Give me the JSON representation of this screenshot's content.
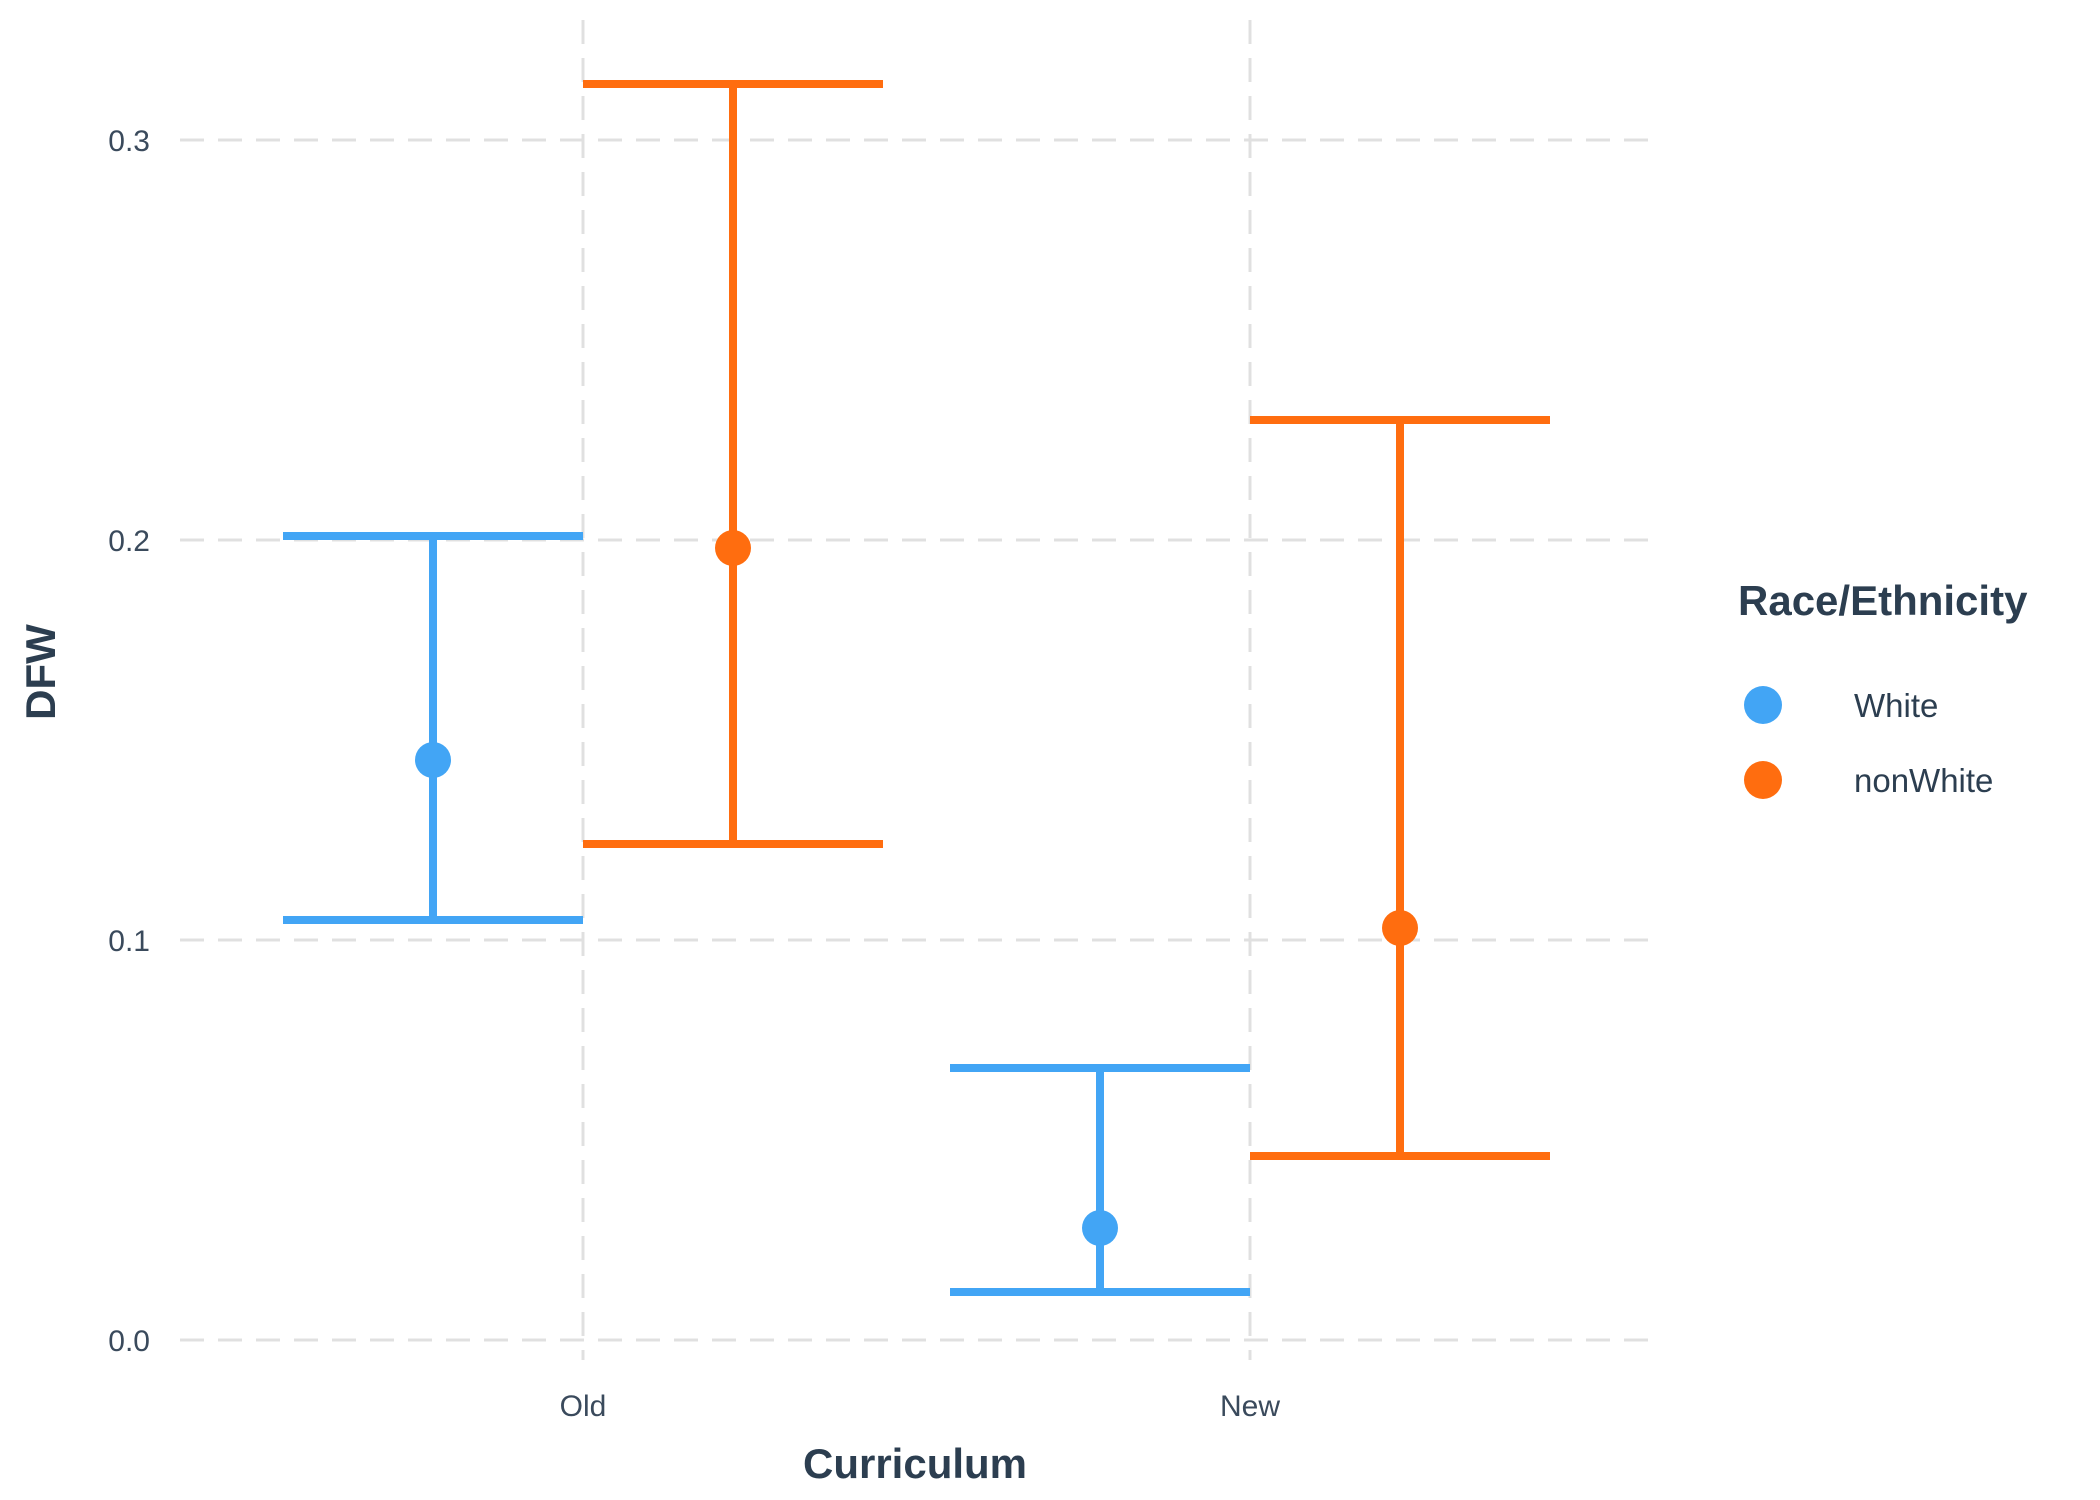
{
  "chart_data": {
    "type": "errorbar",
    "title": "",
    "xlabel": "Curriculum",
    "ylabel": "DFW",
    "categories": [
      "Old",
      "New"
    ],
    "ylim": [
      0,
      0.32
    ],
    "yticks": [
      0.0,
      0.1,
      0.2,
      0.3
    ],
    "ytick_labels": [
      "0.0",
      "0.1",
      "0.2",
      "0.3"
    ],
    "grid": true,
    "legend": {
      "title": "Race/Ethnicity",
      "position": "right"
    },
    "series": [
      {
        "name": "White",
        "color": "#42a5f5",
        "points": [
          {
            "category": "Old",
            "estimate": 0.145,
            "lower": 0.105,
            "upper": 0.201
          },
          {
            "category": "New",
            "estimate": 0.028,
            "lower": 0.012,
            "upper": 0.068
          }
        ]
      },
      {
        "name": "nonWhite",
        "color": "#ff6d0f",
        "points": [
          {
            "category": "Old",
            "estimate": 0.198,
            "lower": 0.124,
            "upper": 0.314
          },
          {
            "category": "New",
            "estimate": 0.103,
            "lower": 0.046,
            "upper": 0.23
          }
        ]
      }
    ]
  }
}
